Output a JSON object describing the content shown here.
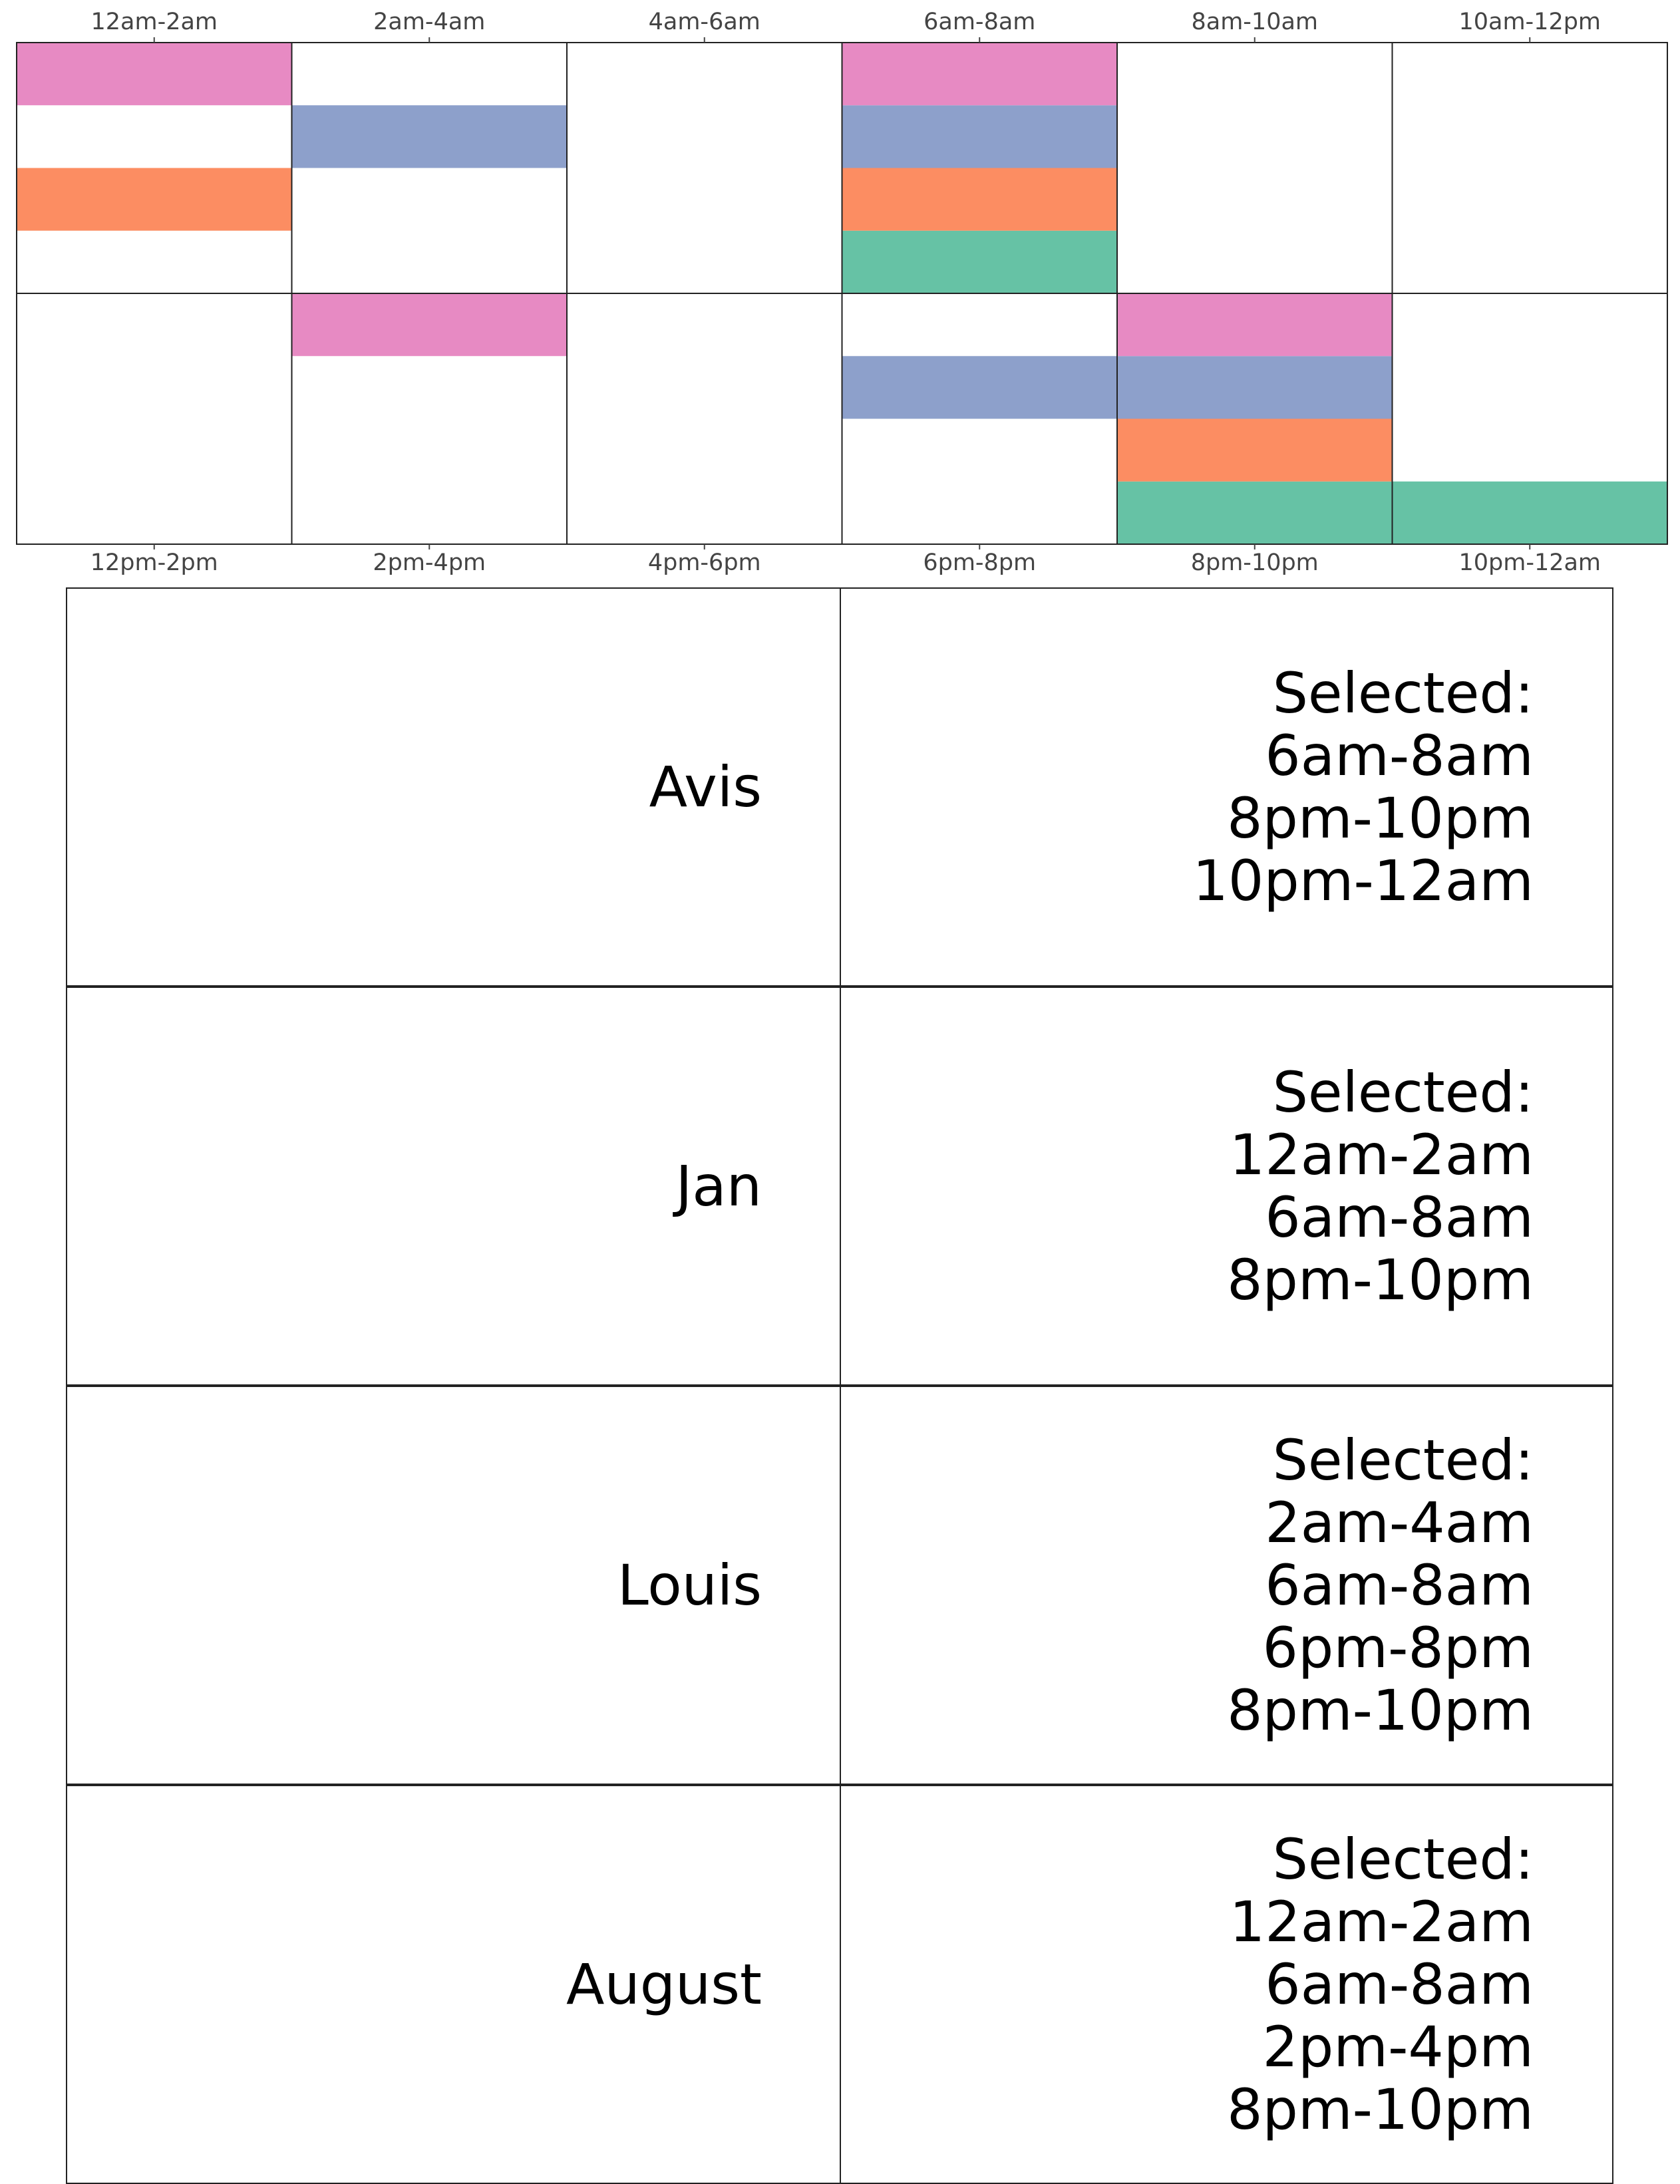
{
  "chart_data": {
    "type": "heatmap",
    "top_row_slots": [
      "12am-2am",
      "2am-4am",
      "4am-6am",
      "6am-8am",
      "8am-10am",
      "10am-12pm"
    ],
    "bottom_row_slots": [
      "12pm-2pm",
      "2pm-4pm",
      "4pm-6pm",
      "6pm-8pm",
      "8pm-10pm",
      "10pm-12am"
    ],
    "people_order_bottom_to_top": [
      "Avis",
      "Jan",
      "Louis",
      "August"
    ],
    "person_colors": {
      "Avis": "#66c2a5",
      "Jan": "#fc8d62",
      "Louis": "#8da0cb",
      "August": "#e78ac3"
    },
    "selections": {
      "Avis": [
        "6am-8am",
        "8pm-10pm",
        "10pm-12am"
      ],
      "Jan": [
        "12am-2am",
        "6am-8am",
        "8pm-10pm"
      ],
      "Louis": [
        "2am-4am",
        "6am-8am",
        "6pm-8pm",
        "8pm-10pm"
      ],
      "August": [
        "12am-2am",
        "6am-8am",
        "2pm-4pm",
        "8pm-10pm"
      ]
    }
  },
  "people": [
    {
      "name": "Avis",
      "selected_label": "Selected:",
      "slots": [
        "6am-8am",
        "8pm-10pm",
        "10pm-12am"
      ]
    },
    {
      "name": "Jan",
      "selected_label": "Selected:",
      "slots": [
        "12am-2am",
        "6am-8am",
        "8pm-10pm"
      ]
    },
    {
      "name": "Louis",
      "selected_label": "Selected:",
      "slots": [
        "2am-4am",
        "6am-8am",
        "6pm-8pm",
        "8pm-10pm"
      ]
    },
    {
      "name": "August",
      "selected_label": "Selected:",
      "slots": [
        "12am-2am",
        "6am-8am",
        "2pm-4pm",
        "8pm-10pm"
      ]
    }
  ]
}
